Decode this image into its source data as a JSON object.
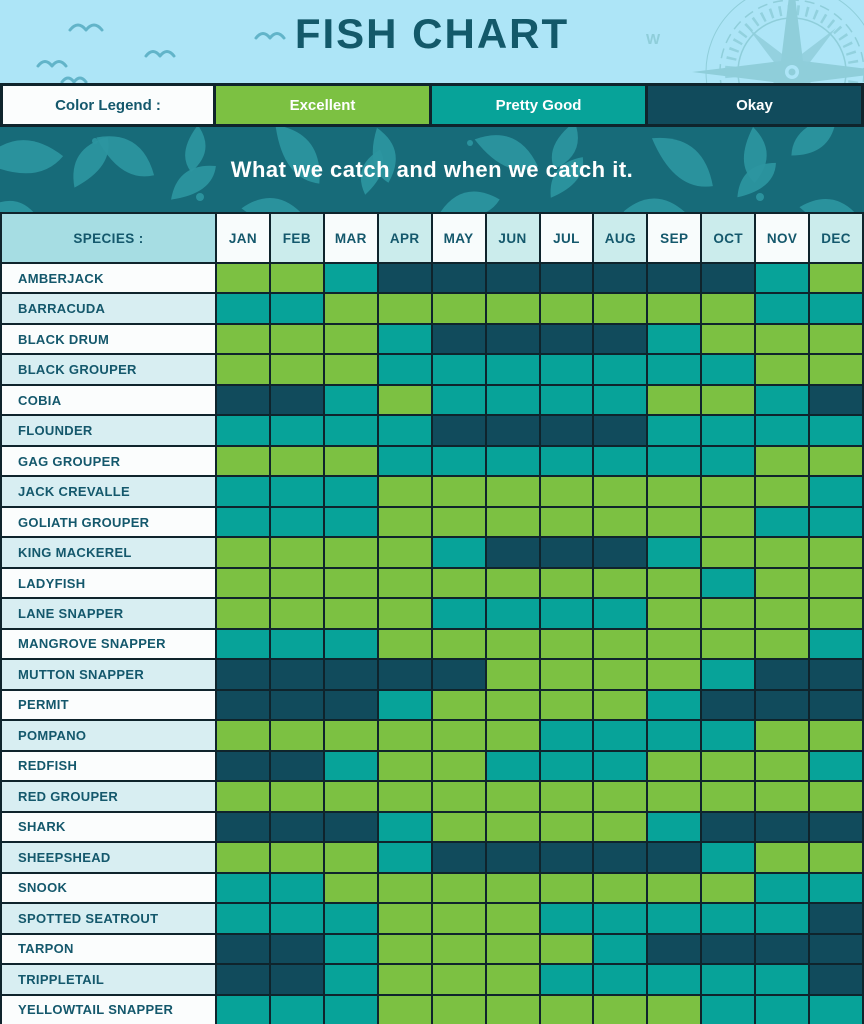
{
  "header": {
    "title": "FISH CHART"
  },
  "legend": {
    "label": "Color Legend :",
    "items": [
      {
        "label": "Excellent",
        "color": "#7CC142"
      },
      {
        "label": "Pretty Good",
        "color": "#07A399"
      },
      {
        "label": "Okay",
        "color": "#114B5C"
      }
    ]
  },
  "banner": {
    "text": "What we catch and when we catch it."
  },
  "table": {
    "species_header": "SPECIES :"
  },
  "icons": {
    "birds": "seagull-flock-icon",
    "compass": "compass-rose-icon",
    "leaves": "leaf-pattern"
  },
  "colors": {
    "excellent": "#7CC142",
    "pretty_good": "#07A399",
    "okay": "#114B5C",
    "grid_border": "#0F242C",
    "sky": "#ADE5F7",
    "banner_bg": "#176B79",
    "banner_leaf": "#2C96A1",
    "header_text": "#14586C",
    "species_header_bg": "#A6DDE3",
    "month_col_white": "#F8FCFC",
    "month_col_tint": "#CBECEC",
    "row_white": "#FBFDFD",
    "row_tint": "#D8EEF2"
  },
  "chart_data": {
    "type": "heatmap",
    "title": "FISH CHART",
    "subtitle": "What we catch and when we catch it.",
    "x_labels": [
      "JAN",
      "FEB",
      "MAR",
      "APR",
      "MAY",
      "JUN",
      "JUL",
      "AUG",
      "SEP",
      "OCT",
      "NOV",
      "DEC"
    ],
    "rating_scale": {
      "E": "Excellent",
      "P": "Pretty Good",
      "O": "Okay"
    },
    "rows": [
      {
        "species": "AMBERJACK",
        "ratings": [
          "E",
          "E",
          "P",
          "O",
          "O",
          "O",
          "O",
          "O",
          "O",
          "O",
          "P",
          "E"
        ]
      },
      {
        "species": "BARRACUDA",
        "ratings": [
          "P",
          "P",
          "E",
          "E",
          "E",
          "E",
          "E",
          "E",
          "E",
          "E",
          "P",
          "P"
        ]
      },
      {
        "species": "BLACK DRUM",
        "ratings": [
          "E",
          "E",
          "E",
          "P",
          "O",
          "O",
          "O",
          "O",
          "P",
          "E",
          "E",
          "E"
        ]
      },
      {
        "species": "BLACK GROUPER",
        "ratings": [
          "E",
          "E",
          "E",
          "P",
          "P",
          "P",
          "P",
          "P",
          "P",
          "P",
          "E",
          "E"
        ]
      },
      {
        "species": "COBIA",
        "ratings": [
          "O",
          "O",
          "P",
          "E",
          "P",
          "P",
          "P",
          "P",
          "E",
          "E",
          "P",
          "O"
        ]
      },
      {
        "species": "FLOUNDER",
        "ratings": [
          "P",
          "P",
          "P",
          "P",
          "O",
          "O",
          "O",
          "O",
          "P",
          "P",
          "P",
          "P"
        ]
      },
      {
        "species": "GAG GROUPER",
        "ratings": [
          "E",
          "E",
          "E",
          "P",
          "P",
          "P",
          "P",
          "P",
          "P",
          "P",
          "E",
          "E"
        ]
      },
      {
        "species": "JACK CREVALLE",
        "ratings": [
          "P",
          "P",
          "P",
          "E",
          "E",
          "E",
          "E",
          "E",
          "E",
          "E",
          "E",
          "P"
        ]
      },
      {
        "species": "GOLIATH GROUPER",
        "ratings": [
          "P",
          "P",
          "P",
          "E",
          "E",
          "E",
          "E",
          "E",
          "E",
          "E",
          "P",
          "P"
        ]
      },
      {
        "species": "KING MACKEREL",
        "ratings": [
          "E",
          "E",
          "E",
          "E",
          "P",
          "O",
          "O",
          "O",
          "P",
          "E",
          "E",
          "E"
        ]
      },
      {
        "species": "LADYFISH",
        "ratings": [
          "E",
          "E",
          "E",
          "E",
          "E",
          "E",
          "E",
          "E",
          "E",
          "P",
          "E",
          "E"
        ]
      },
      {
        "species": "LANE SNAPPER",
        "ratings": [
          "E",
          "E",
          "E",
          "E",
          "P",
          "P",
          "P",
          "P",
          "E",
          "E",
          "E",
          "E"
        ]
      },
      {
        "species": "MANGROVE SNAPPER",
        "ratings": [
          "P",
          "P",
          "P",
          "E",
          "E",
          "E",
          "E",
          "E",
          "E",
          "E",
          "E",
          "P"
        ]
      },
      {
        "species": "MUTTON SNAPPER",
        "ratings": [
          "O",
          "O",
          "O",
          "O",
          "O",
          "E",
          "E",
          "E",
          "E",
          "P",
          "O",
          "O"
        ]
      },
      {
        "species": "PERMIT",
        "ratings": [
          "O",
          "O",
          "O",
          "P",
          "E",
          "E",
          "E",
          "E",
          "P",
          "O",
          "O",
          "O"
        ]
      },
      {
        "species": "POMPANO",
        "ratings": [
          "E",
          "E",
          "E",
          "E",
          "E",
          "E",
          "P",
          "P",
          "P",
          "P",
          "E",
          "E"
        ]
      },
      {
        "species": "REDFISH",
        "ratings": [
          "O",
          "O",
          "P",
          "E",
          "E",
          "P",
          "P",
          "P",
          "E",
          "E",
          "E",
          "P"
        ]
      },
      {
        "species": "RED GROUPER",
        "ratings": [
          "E",
          "E",
          "E",
          "E",
          "E",
          "E",
          "E",
          "E",
          "E",
          "E",
          "E",
          "E"
        ]
      },
      {
        "species": "SHARK",
        "ratings": [
          "O",
          "O",
          "O",
          "P",
          "E",
          "E",
          "E",
          "E",
          "P",
          "O",
          "O",
          "O"
        ]
      },
      {
        "species": "SHEEPSHEAD",
        "ratings": [
          "E",
          "E",
          "E",
          "P",
          "O",
          "O",
          "O",
          "O",
          "O",
          "P",
          "E",
          "E"
        ]
      },
      {
        "species": "SNOOK",
        "ratings": [
          "P",
          "P",
          "E",
          "E",
          "E",
          "E",
          "E",
          "E",
          "E",
          "E",
          "P",
          "P"
        ]
      },
      {
        "species": "SPOTTED SEATROUT",
        "ratings": [
          "P",
          "P",
          "P",
          "E",
          "E",
          "E",
          "P",
          "P",
          "P",
          "P",
          "P",
          "O"
        ]
      },
      {
        "species": "TARPON",
        "ratings": [
          "O",
          "O",
          "P",
          "E",
          "E",
          "E",
          "E",
          "P",
          "O",
          "O",
          "O",
          "O"
        ]
      },
      {
        "species": "TRIPPLETAIL",
        "ratings": [
          "O",
          "O",
          "P",
          "E",
          "E",
          "E",
          "P",
          "P",
          "P",
          "P",
          "P",
          "O"
        ]
      },
      {
        "species": "YELLOWTAIL SNAPPER",
        "ratings": [
          "P",
          "P",
          "P",
          "E",
          "E",
          "E",
          "E",
          "E",
          "E",
          "P",
          "P",
          "P"
        ]
      }
    ]
  }
}
